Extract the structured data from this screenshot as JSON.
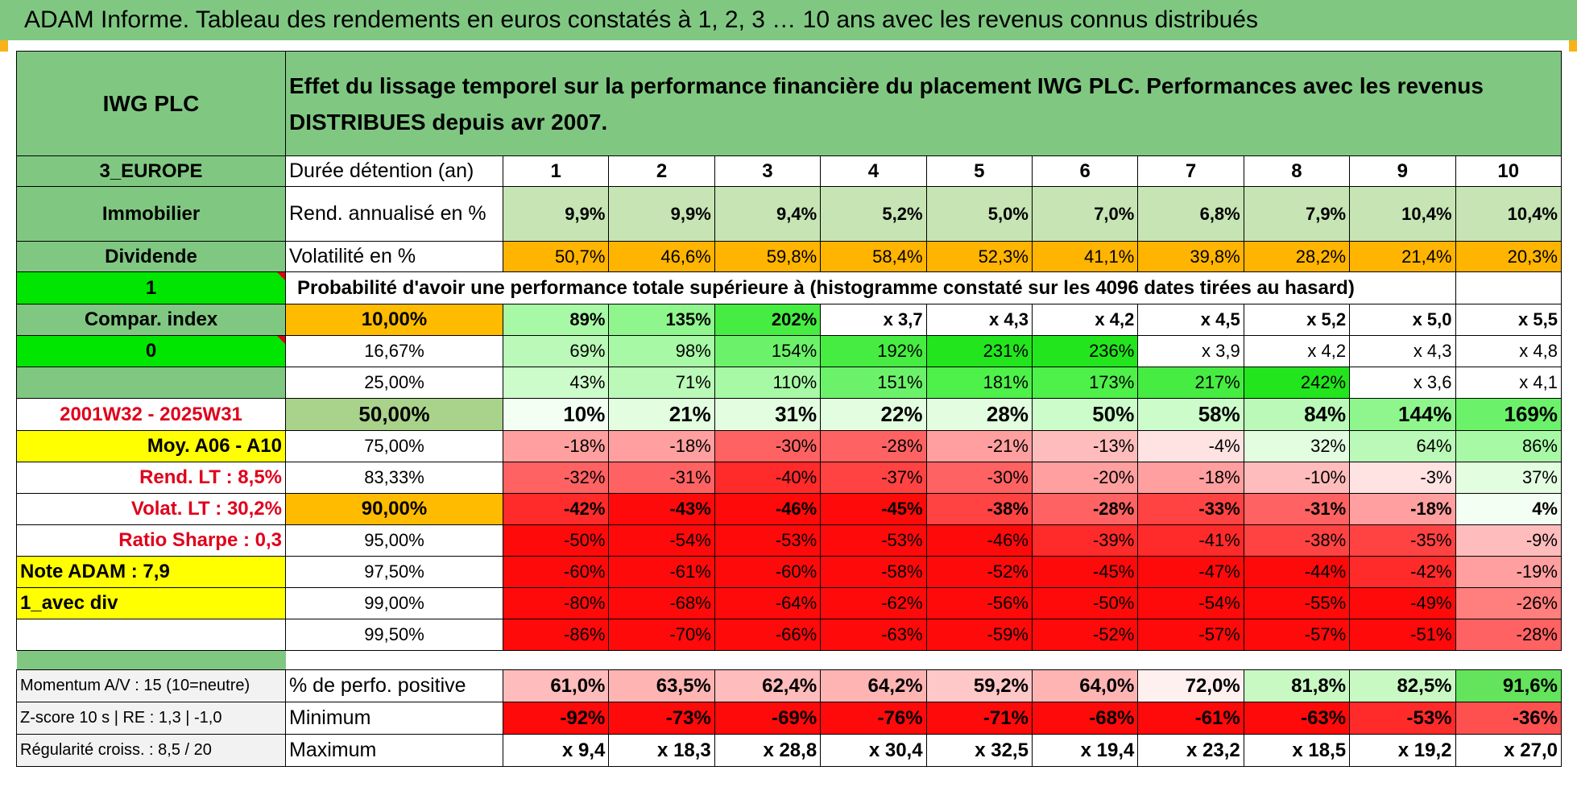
{
  "banner": "ADAM Informe. Tableau des rendements en euros constatés à 1, 2, 3 … 10 ans avec les revenus connus distribués",
  "left": {
    "name": "IWG PLC",
    "region": "3_EUROPE",
    "sector": "Immobilier",
    "income": "Dividende",
    "flag1": "1",
    "compar": "Compar. index",
    "flag2": "0",
    "period": "2001W32 - 2025W31",
    "moy": "Moy. A06 - A10",
    "rend_lt": "Rend. LT :    8,5%",
    "volat_lt": "Volat. LT :    30,2%",
    "sharpe": "Ratio Sharpe :     0,3",
    "note": "Note ADAM : 7,9",
    "div": "1_avec div",
    "momentum": "Momentum A/V : 15 (10=neutre)",
    "zscore": "Z-score 10 s | RE : 1,3 | -1,0",
    "regularite": "Régularité croiss. : 8,5 / 20"
  },
  "title": "Effet du lissage temporel sur la performance financière du placement IWG PLC. Performances avec les revenus DISTRIBUES depuis avr 2007.",
  "labels": {
    "duree": "Durée détention (an)",
    "rend": "Rend. annualisé en %",
    "vol": "Volatilité en %",
    "prob": "Probabilité d'avoir une performance totale supérieure à (histogramme constaté sur les 4096 dates tirées au hasard)",
    "pos": "% de perfo. positive",
    "min": "Minimum",
    "max": "Maximum"
  },
  "years": [
    "1",
    "2",
    "3",
    "4",
    "5",
    "6",
    "7",
    "8",
    "9",
    "10"
  ],
  "rend": [
    "9,9%",
    "9,9%",
    "9,4%",
    "5,2%",
    "5,0%",
    "7,0%",
    "6,8%",
    "7,9%",
    "10,4%",
    "10,4%"
  ],
  "vol": [
    "50,7%",
    "46,6%",
    "59,8%",
    "58,4%",
    "52,3%",
    "41,1%",
    "39,8%",
    "28,2%",
    "21,4%",
    "20,3%"
  ],
  "quantiles": [
    {
      "q": "10,00%",
      "v": [
        "89%",
        "135%",
        "202%",
        "x 3,7",
        "x 4,3",
        "x 4,2",
        "x 4,5",
        "x 5,2",
        "x 5,0",
        "x 5,5"
      ]
    },
    {
      "q": "16,67%",
      "v": [
        "69%",
        "98%",
        "154%",
        "192%",
        "231%",
        "236%",
        "x 3,9",
        "x 4,2",
        "x 4,3",
        "x 4,8"
      ]
    },
    {
      "q": "25,00%",
      "v": [
        "43%",
        "71%",
        "110%",
        "151%",
        "181%",
        "173%",
        "217%",
        "242%",
        "x 3,6",
        "x 4,1"
      ]
    },
    {
      "q": "50,00%",
      "v": [
        "10%",
        "21%",
        "31%",
        "22%",
        "28%",
        "50%",
        "58%",
        "84%",
        "144%",
        "169%"
      ]
    },
    {
      "q": "75,00%",
      "v": [
        "-18%",
        "-18%",
        "-30%",
        "-28%",
        "-21%",
        "-13%",
        "-4%",
        "32%",
        "64%",
        "86%"
      ]
    },
    {
      "q": "83,33%",
      "v": [
        "-32%",
        "-31%",
        "-40%",
        "-37%",
        "-30%",
        "-20%",
        "-18%",
        "-10%",
        "-3%",
        "37%"
      ]
    },
    {
      "q": "90,00%",
      "v": [
        "-42%",
        "-43%",
        "-46%",
        "-45%",
        "-38%",
        "-28%",
        "-33%",
        "-31%",
        "-18%",
        "4%"
      ]
    },
    {
      "q": "95,00%",
      "v": [
        "-50%",
        "-54%",
        "-53%",
        "-53%",
        "-46%",
        "-39%",
        "-41%",
        "-38%",
        "-35%",
        "-9%"
      ]
    },
    {
      "q": "97,50%",
      "v": [
        "-60%",
        "-61%",
        "-60%",
        "-58%",
        "-52%",
        "-45%",
        "-47%",
        "-44%",
        "-42%",
        "-19%"
      ]
    },
    {
      "q": "99,00%",
      "v": [
        "-80%",
        "-68%",
        "-64%",
        "-62%",
        "-56%",
        "-50%",
        "-54%",
        "-55%",
        "-49%",
        "-26%"
      ]
    },
    {
      "q": "99,50%",
      "v": [
        "-86%",
        "-70%",
        "-66%",
        "-63%",
        "-59%",
        "-52%",
        "-57%",
        "-57%",
        "-51%",
        "-28%"
      ]
    }
  ],
  "pos": [
    "61,0%",
    "63,5%",
    "62,4%",
    "64,2%",
    "59,2%",
    "64,0%",
    "72,0%",
    "81,8%",
    "82,5%",
    "91,6%"
  ],
  "min": [
    "-92%",
    "-73%",
    "-69%",
    "-76%",
    "-71%",
    "-68%",
    "-61%",
    "-63%",
    "-53%",
    "-36%"
  ],
  "max": [
    "x 9,4",
    "x 18,3",
    "x 28,8",
    "x 30,4",
    "x 32,5",
    "x 19,4",
    "x 23,2",
    "x 18,5",
    "x 19,2",
    "x 27,0"
  ],
  "colors": {
    "header_green": "#80c882",
    "bright_green": "#00e600",
    "yellow": "#ffff00",
    "orange": "#ffbb00",
    "volatility_orange": "#ffb400",
    "rend_green": "#c6e4b4"
  }
}
